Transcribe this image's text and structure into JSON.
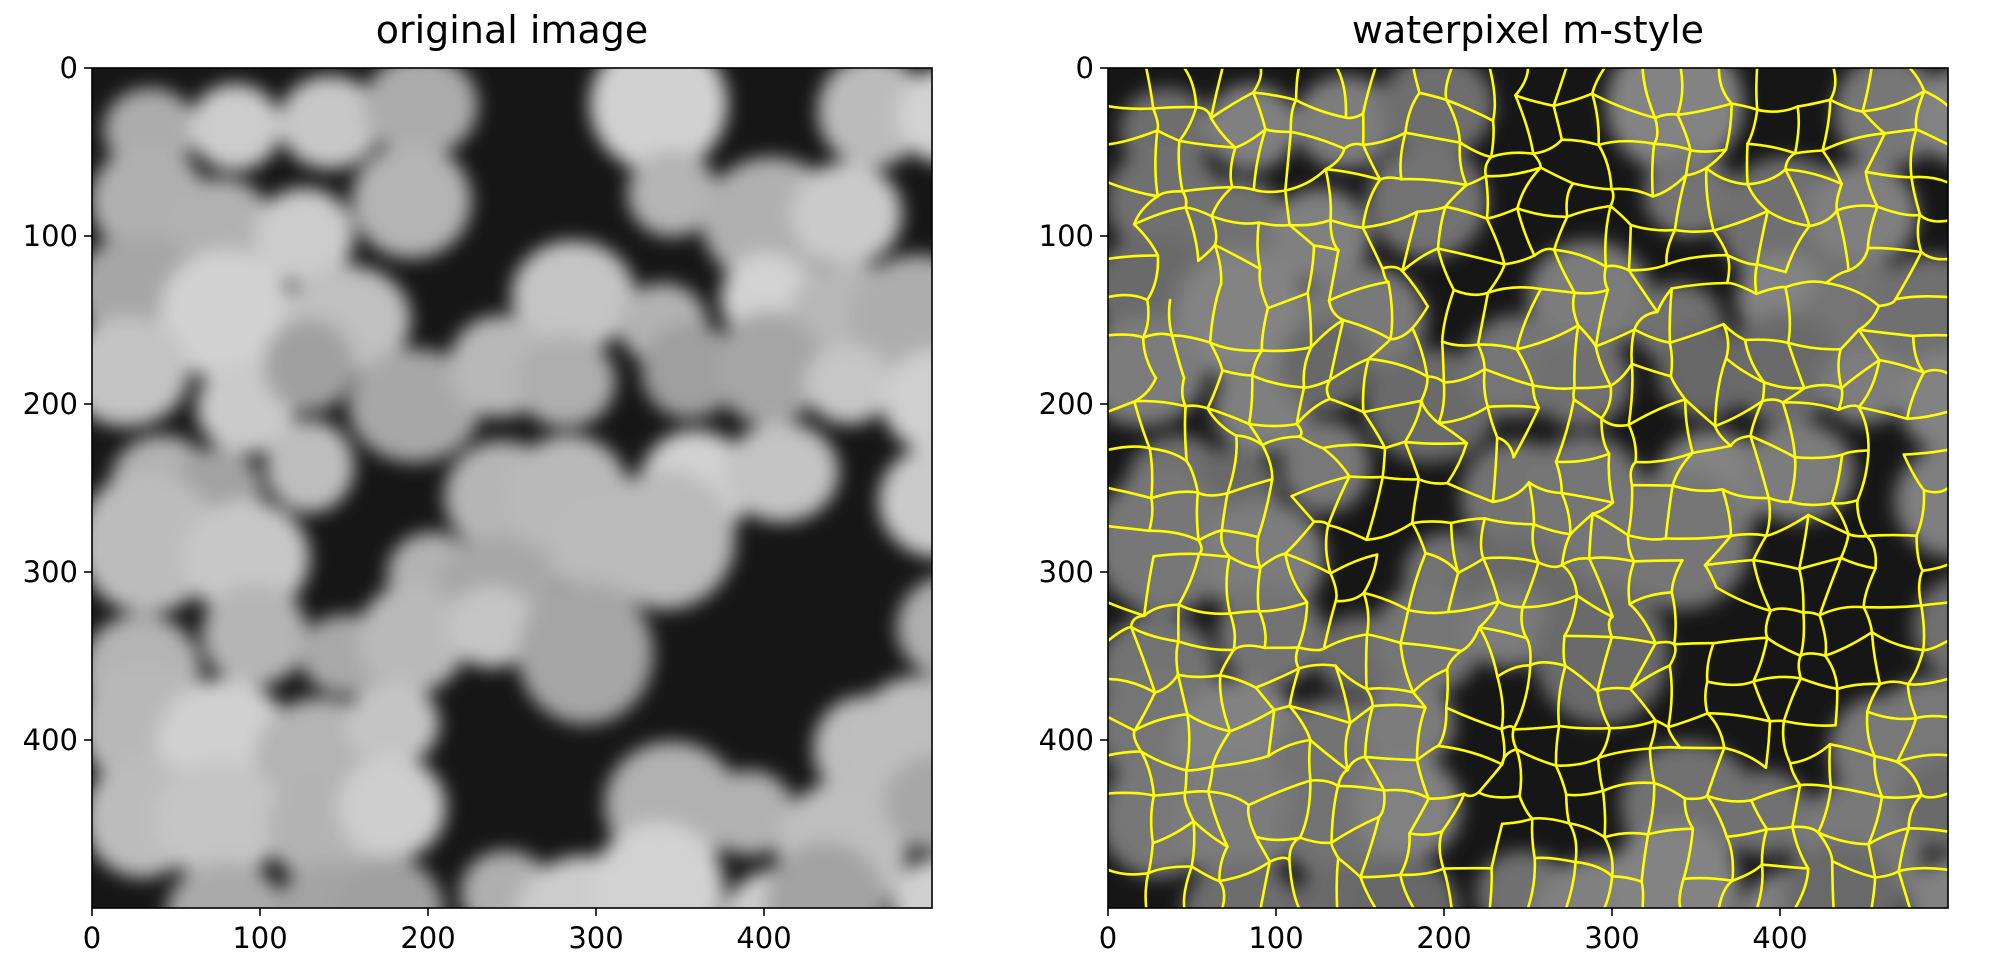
{
  "figure": {
    "panels": [
      {
        "title": "original image",
        "image_description": "grayscale micrograph of clustered bright cells on dark background",
        "x_ticks": [
          "0",
          "100",
          "200",
          "300",
          "400"
        ],
        "y_ticks": [
          "0",
          "100",
          "200",
          "300",
          "400"
        ],
        "x_range": [
          0,
          500
        ],
        "y_range": [
          500,
          0
        ]
      },
      {
        "title": "waterpixel m-style",
        "image_description": "dimmed grayscale micrograph overlaid with yellow waterpixel boundaries",
        "x_ticks": [
          "0",
          "100",
          "200",
          "300",
          "400"
        ],
        "y_ticks": [
          "0",
          "100",
          "200",
          "300",
          "400"
        ],
        "x_range": [
          0,
          500
        ],
        "y_range": [
          500,
          0
        ],
        "overlay_color": "#ffff00"
      }
    ]
  },
  "colors": {
    "background": "#ffffff",
    "image_dark": "#161616",
    "overlay": "#ffff00"
  }
}
